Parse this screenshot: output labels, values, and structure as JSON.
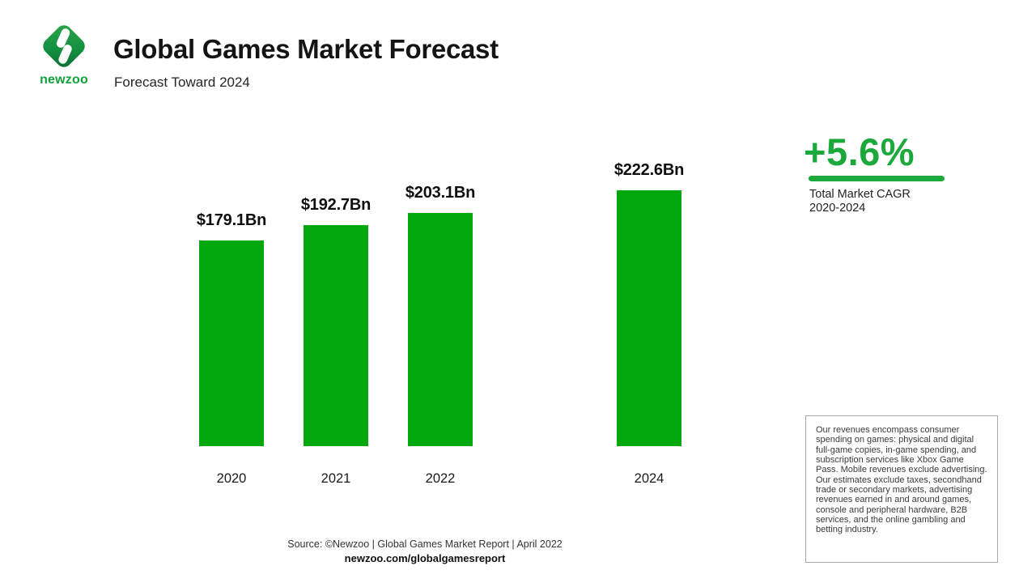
{
  "brand": {
    "logo_icon": "newzoo-diamond-logo",
    "wordmark": "newzoo"
  },
  "header": {
    "title": "Global Games Market Forecast",
    "subtitle": "Forecast Toward 2024"
  },
  "chart_data": {
    "type": "bar",
    "title": "Global Games Market Forecast",
    "subtitle": "Forecast Toward 2024",
    "categories": [
      "2020",
      "2021",
      "2022",
      "2024"
    ],
    "values": [
      179.1,
      192.7,
      203.1,
      222.6
    ],
    "value_labels": [
      "$179.1Bn",
      "$192.7Bn",
      "$203.1Bn",
      "$222.6Bn"
    ],
    "unit": "$Bn",
    "ylim": [
      0,
      240
    ],
    "grid": false,
    "legend": false,
    "bar_color": "#00A80B",
    "layout_note_visible": "2023 column absent; gap between 2022 and 2024"
  },
  "cagr": {
    "value": "+5.6%",
    "caption_line1": "Total Market CAGR",
    "caption_line2": "2020-2024"
  },
  "disclaimer": {
    "text": "Our revenues encompass consumer spending on games: physical and digital full-game copies, in-game spending, and subscription services like Xbox Game Pass. Mobile revenues exclude advertising. Our estimates exclude taxes, secondhand trade or secondary markets, advertising revenues earned in and around games, console and peripheral hardware, B2B services, and the online gambling and betting industry."
  },
  "footer": {
    "source": "Source: ©Newzoo | Global Games Market Report | April 2022",
    "link": "newzoo.com/globalgamesreport"
  },
  "colors": {
    "bar_green": "#00A80B",
    "accent_green": "#1CA93B",
    "logo_green_light": "#2CA349",
    "logo_green_dark": "#0D7A33",
    "text_dark": "#141414"
  }
}
